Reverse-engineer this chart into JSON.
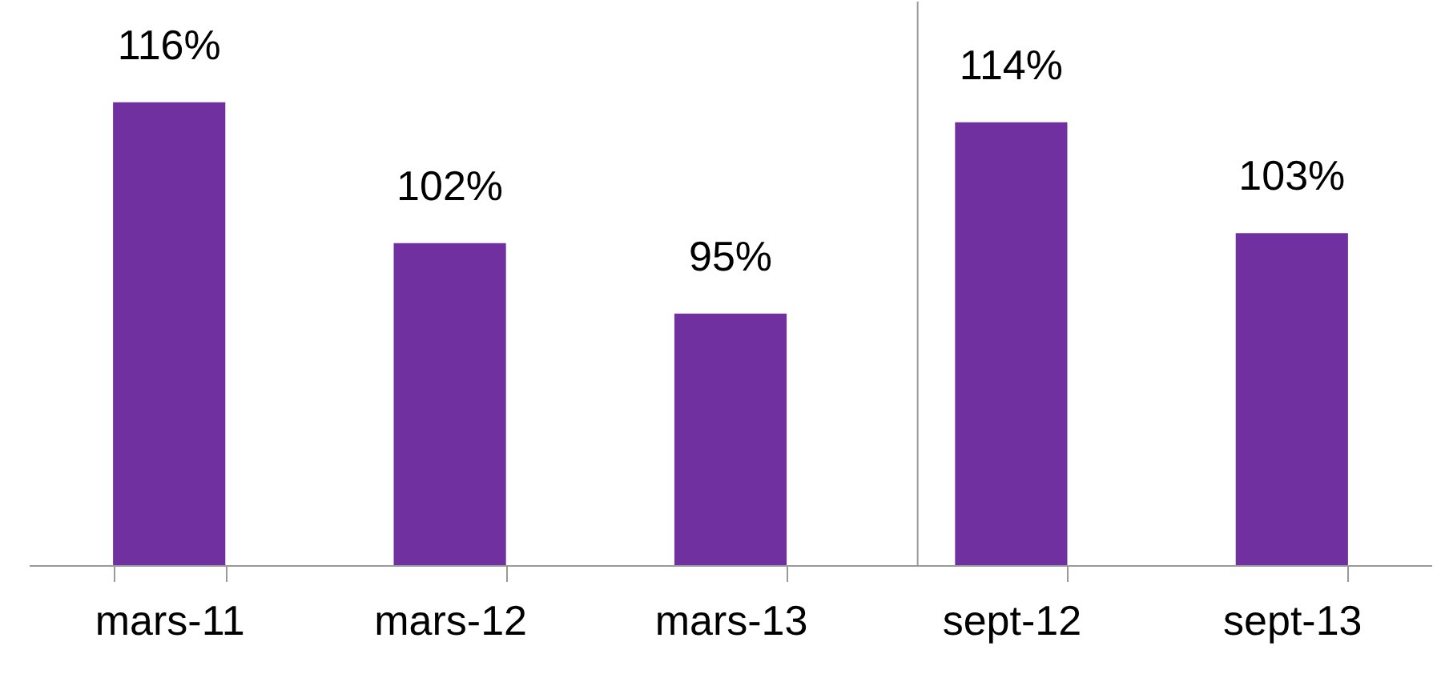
{
  "chart_data": {
    "type": "bar",
    "categories": [
      "mars-11",
      "mars-12",
      "mars-13",
      "sept-12",
      "sept-13"
    ],
    "values": [
      116,
      102,
      95,
      114,
      103
    ],
    "value_labels": [
      "116%",
      "102%",
      "95%",
      "114%",
      "103%"
    ],
    "color": "#7030a0",
    "ylim": [
      70,
      126
    ],
    "tick_labels": "x",
    "grid": false,
    "ref_lines": [
      {
        "axis": "x",
        "value": "sept-12",
        "color": "#999999"
      }
    ]
  }
}
